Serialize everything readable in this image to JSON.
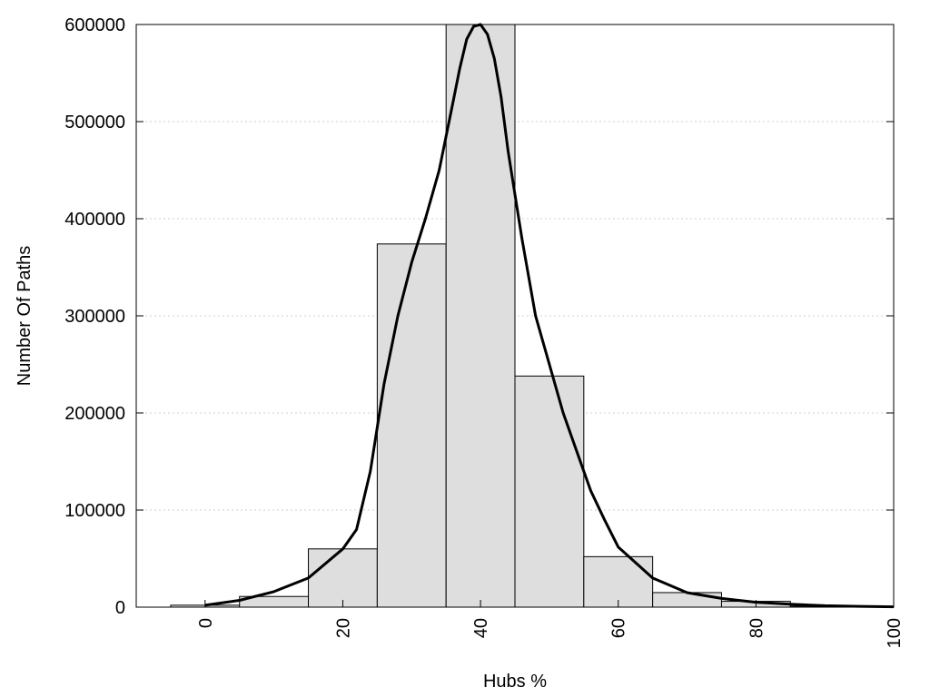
{
  "chart_data": {
    "type": "bar",
    "title": "",
    "xlabel": "Hubs %",
    "ylabel": "Number Of Paths",
    "xlim": [
      -10,
      100
    ],
    "ylim": [
      0,
      600000
    ],
    "xticks": [
      0,
      20,
      40,
      60,
      80,
      100
    ],
    "yticks": [
      0,
      100000,
      200000,
      300000,
      400000,
      500000,
      600000
    ],
    "grid": "horizontal dotted",
    "bar_width": 10,
    "bars": [
      {
        "x": 0,
        "value": 2000
      },
      {
        "x": 10,
        "value": 11000
      },
      {
        "x": 20,
        "value": 60000
      },
      {
        "x": 30,
        "value": 374000
      },
      {
        "x": 40,
        "value": 600000
      },
      {
        "x": 50,
        "value": 238000
      },
      {
        "x": 60,
        "value": 52000
      },
      {
        "x": 70,
        "value": 15000
      },
      {
        "x": 80,
        "value": 6000
      },
      {
        "x": 90,
        "value": 1000
      }
    ],
    "curve": {
      "x": [
        0,
        5,
        10,
        15,
        20,
        22,
        24,
        26,
        28,
        30,
        32,
        34,
        35,
        36,
        37,
        38,
        39,
        40,
        41,
        42,
        43,
        44,
        46,
        48,
        50,
        52,
        54,
        56,
        58,
        60,
        65,
        70,
        75,
        80,
        85,
        90,
        95,
        100
      ],
      "y": [
        2000,
        7000,
        16000,
        30000,
        60000,
        80000,
        140000,
        230000,
        300000,
        355000,
        400000,
        450000,
        485000,
        520000,
        555000,
        585000,
        598000,
        600000,
        590000,
        565000,
        525000,
        470000,
        380000,
        300000,
        250000,
        200000,
        160000,
        120000,
        90000,
        62000,
        30000,
        15000,
        9000,
        5000,
        3000,
        1500,
        800,
        400
      ]
    },
    "colors": {
      "bar_fill": "#dedede",
      "bar_stroke": "#000000",
      "curve": "#000000",
      "grid": "#cfcfcf"
    }
  }
}
